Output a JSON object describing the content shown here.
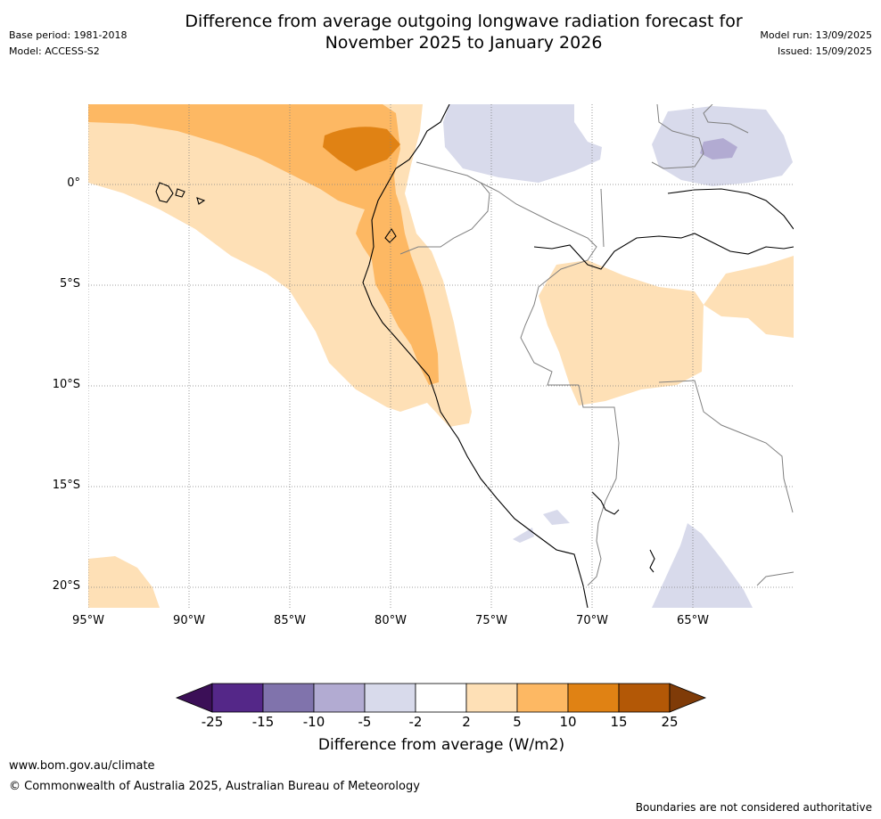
{
  "header": {
    "title_line1": "Difference from average outgoing longwave radiation forecast for",
    "title_line2": "November 2025 to January 2026",
    "base_period": "Base period: 1981-2018",
    "model": "Model: ACCESS-S2",
    "model_run": "Model run: 13/09/2025",
    "issued": "Issued: 15/09/2025"
  },
  "map": {
    "lat_labels": [
      "0°",
      "5°S",
      "10°S",
      "15°S",
      "20°S"
    ],
    "lon_labels": [
      "95°W",
      "90°W",
      "85°W",
      "80°W",
      "75°W",
      "70°W",
      "65°W"
    ]
  },
  "colorbar": {
    "colors": [
      "#3b0f57",
      "#542788",
      "#8073ac",
      "#b2abd2",
      "#d8daeb",
      "#ffffff",
      "#fee0b6",
      "#fdb863",
      "#e08214",
      "#b35806",
      "#7f3b08"
    ],
    "ticks": [
      "-25",
      "-15",
      "-10",
      "-5",
      "-2",
      "2",
      "5",
      "10",
      "15",
      "25"
    ],
    "label": "Difference from average (W/m2)"
  },
  "footer": {
    "url": "www.bom.gov.au/climate",
    "copyright": "© Commonwealth of Australia 2025, Australian Bureau of Meteorology",
    "disclaimer": "Boundaries are not considered authoritative"
  }
}
